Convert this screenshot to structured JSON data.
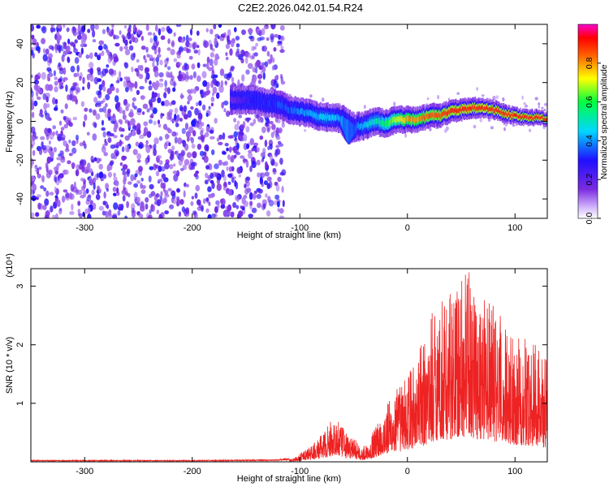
{
  "chart_data": [
    {
      "type": "heatmap",
      "title": "C2E2.2026.042.01.54.R24",
      "xlabel": "Height of straight line (km)",
      "ylabel": "Frequency (Hz)",
      "xlim": [
        -350,
        130
      ],
      "ylim": [
        -50,
        50
      ],
      "x_ticks": [
        -300,
        -200,
        -100,
        0,
        100
      ],
      "y_ticks": [
        -40,
        -20,
        0,
        20,
        40
      ],
      "colorbar": {
        "label": "Normalized spectral amplitude",
        "range": [
          0,
          1
        ],
        "ticks": [
          0.0,
          0.2,
          0.4,
          0.6,
          0.8
        ],
        "tick_labels": [
          "0.0",
          "0.2",
          "0.4",
          "0.6",
          "0.8"
        ],
        "colors": [
          "#ffffff",
          "#7b2be0",
          "#2010ff",
          "#00d8ff",
          "#00ff40",
          "#ffff00",
          "#ff6000",
          "#ff0000",
          "#ff00d0"
        ]
      },
      "noise_region": {
        "x_from": -350,
        "x_to": -115,
        "level": 0.1
      },
      "signal_ridge": {
        "x": [
          -165,
          -150,
          -140,
          -130,
          -120,
          -110,
          -100,
          -90,
          -80,
          -70,
          -60,
          -50,
          -40,
          -30,
          -20,
          -10,
          0,
          10,
          20,
          30,
          40,
          50,
          60,
          70,
          80,
          90,
          100,
          110,
          120,
          130
        ],
        "freq_hz": [
          11,
          11,
          11,
          9,
          9,
          6,
          5,
          4,
          2,
          2,
          1,
          -3,
          -2,
          0,
          -1,
          1,
          1,
          1,
          3,
          3,
          5,
          6,
          7,
          7,
          6,
          4,
          3,
          2,
          2,
          1
        ],
        "amplitude": [
          0.15,
          0.25,
          0.3,
          0.3,
          0.35,
          0.35,
          0.4,
          0.42,
          0.45,
          0.45,
          0.4,
          0.35,
          0.45,
          0.5,
          0.6,
          0.7,
          0.8,
          0.8,
          0.85,
          0.85,
          0.9,
          0.9,
          0.9,
          0.9,
          0.9,
          0.9,
          0.9,
          0.9,
          0.9,
          0.9
        ],
        "dip": {
          "x": -55,
          "freq_hz": -12
        }
      }
    },
    {
      "type": "line",
      "xlabel": "Height of straight line (km)",
      "ylabel": "SNR (10 * v/v)",
      "y_scale_label": "(x10⁴)",
      "xlim": [
        -350,
        130
      ],
      "ylim": [
        0,
        3.3
      ],
      "x_ticks": [
        -300,
        -200,
        -100,
        0,
        100
      ],
      "y_ticks": [
        1,
        2,
        3
      ],
      "color": "#ee2222",
      "series": [
        {
          "name": "SNR",
          "x": [
            -350,
            -200,
            -120,
            -105,
            -95,
            -85,
            -75,
            -68,
            -62,
            -55,
            -48,
            -42,
            -35,
            -25,
            -15,
            -5,
            5,
            15,
            25,
            35,
            45,
            55,
            65,
            75,
            85,
            95,
            105,
            115,
            125,
            130
          ],
          "envelope": [
            0.02,
            0.02,
            0.03,
            0.06,
            0.18,
            0.3,
            0.5,
            0.7,
            0.55,
            0.4,
            0.35,
            0.2,
            0.35,
            0.7,
            1.0,
            1.2,
            1.5,
            1.8,
            2.4,
            2.5,
            2.6,
            2.9,
            2.6,
            2.5,
            2.2,
            2.0,
            1.9,
            1.8,
            1.7,
            1.6
          ]
        }
      ]
    }
  ]
}
